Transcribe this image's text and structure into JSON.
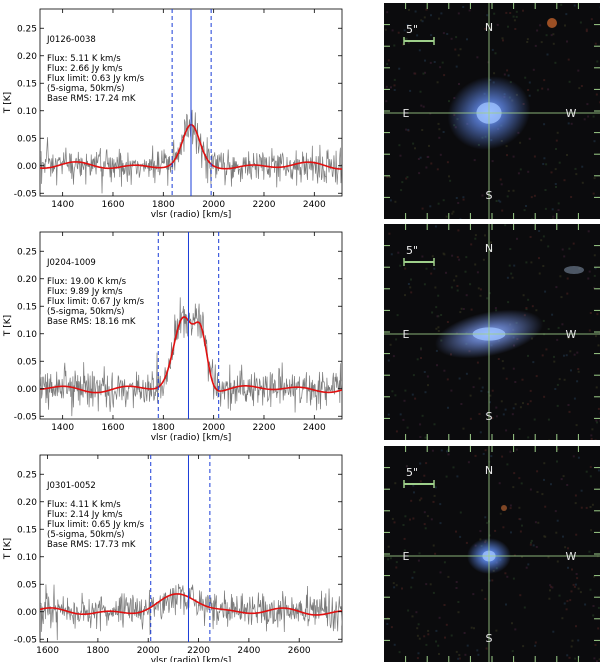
{
  "chart_data": [
    {
      "type": "line",
      "id": "J0126-0038",
      "label": "J0126-0038",
      "info": [
        "Flux: 5.11 K km/s",
        "Flux: 2.66 Jy km/s",
        "Flux limit: 0.63 Jy km/s",
        "(5-sigma, 50km/s)",
        "Base RMS: 17.24 mK"
      ],
      "xlabel": "vlsr (radio) [km/s]",
      "ylabel": "T [K]",
      "xlim": [
        1310,
        2510
      ],
      "ylim": [
        -0.055,
        0.285
      ],
      "xticks": [
        1400,
        1600,
        1800,
        2000,
        2200,
        2400
      ],
      "yticks": [
        -0.05,
        0.0,
        0.05,
        0.1,
        0.15,
        0.2,
        0.25
      ],
      "center_line": 1910,
      "window_lines": [
        1835,
        1990
      ],
      "fit": {
        "baseline": 0.0,
        "components": [
          {
            "center": 1910,
            "amp": 0.068,
            "sigma": 33
          }
        ]
      },
      "noise_rms": 0.017
    },
    {
      "type": "line",
      "id": "J0204-1009",
      "label": "J0204-1009",
      "info": [
        "Flux: 19.00 K km/s",
        "Flux: 9.89 Jy km/s",
        "Flux limit: 0.67 Jy km/s",
        "(5-sigma, 50km/s)",
        "Base RMS: 18.16 mK"
      ],
      "xlabel": "vlsr (radio) [km/s]",
      "ylabel": "T [K]",
      "xlim": [
        1310,
        2510
      ],
      "ylim": [
        -0.055,
        0.285
      ],
      "xticks": [
        1400,
        1600,
        1800,
        2000,
        2200,
        2400
      ],
      "yticks": [
        -0.05,
        0.0,
        0.05,
        0.1,
        0.15,
        0.2,
        0.25
      ],
      "center_line": 1900,
      "window_lines": [
        1780,
        2020
      ],
      "fit": {
        "baseline": 0.0,
        "components": [
          {
            "center": 1880,
            "amp": 0.125,
            "sigma": 38
          },
          {
            "center": 1950,
            "amp": 0.095,
            "sigma": 25
          }
        ]
      },
      "noise_rms": 0.018
    },
    {
      "type": "line",
      "id": "J0301-0052",
      "label": "J0301-0052",
      "info": [
        "Flux: 4.11 K km/s",
        "Flux: 2.14 Jy km/s",
        "Flux limit: 0.65 Jy km/s",
        "(5-sigma, 50km/s)",
        "Base RMS: 17.73 mK"
      ],
      "xlabel": "vlsr (radio) [km/s]",
      "ylabel": "T [K]",
      "xlim": [
        1570,
        2770
      ],
      "ylim": [
        -0.055,
        0.285
      ],
      "xticks": [
        1600,
        1800,
        2000,
        2200,
        2400,
        2600
      ],
      "yticks": [
        -0.05,
        0.0,
        0.05,
        0.1,
        0.15,
        0.2,
        0.25
      ],
      "center_line": 2160,
      "window_lines": [
        2010,
        2245
      ],
      "fit": {
        "baseline": 0.0,
        "components": [
          {
            "center": 2140,
            "amp": 0.03,
            "sigma": 75
          }
        ]
      },
      "noise_rms": 0.017
    }
  ],
  "images": [
    {
      "compass": {
        "n": "N",
        "s": "S",
        "e": "E",
        "w": "W"
      },
      "scale_label": "5\"",
      "galaxy": {
        "color": "#5a7fd8",
        "size": "large"
      }
    },
    {
      "compass": {
        "n": "N",
        "s": "S",
        "e": "E",
        "w": "W"
      },
      "scale_label": "5\"",
      "galaxy": {
        "color": "#6a85cf",
        "size": "elongated"
      }
    },
    {
      "compass": {
        "n": "N",
        "s": "S",
        "e": "E",
        "w": "W"
      },
      "scale_label": "5\"",
      "galaxy": {
        "color": "#5b86e6",
        "size": "compact"
      }
    }
  ]
}
